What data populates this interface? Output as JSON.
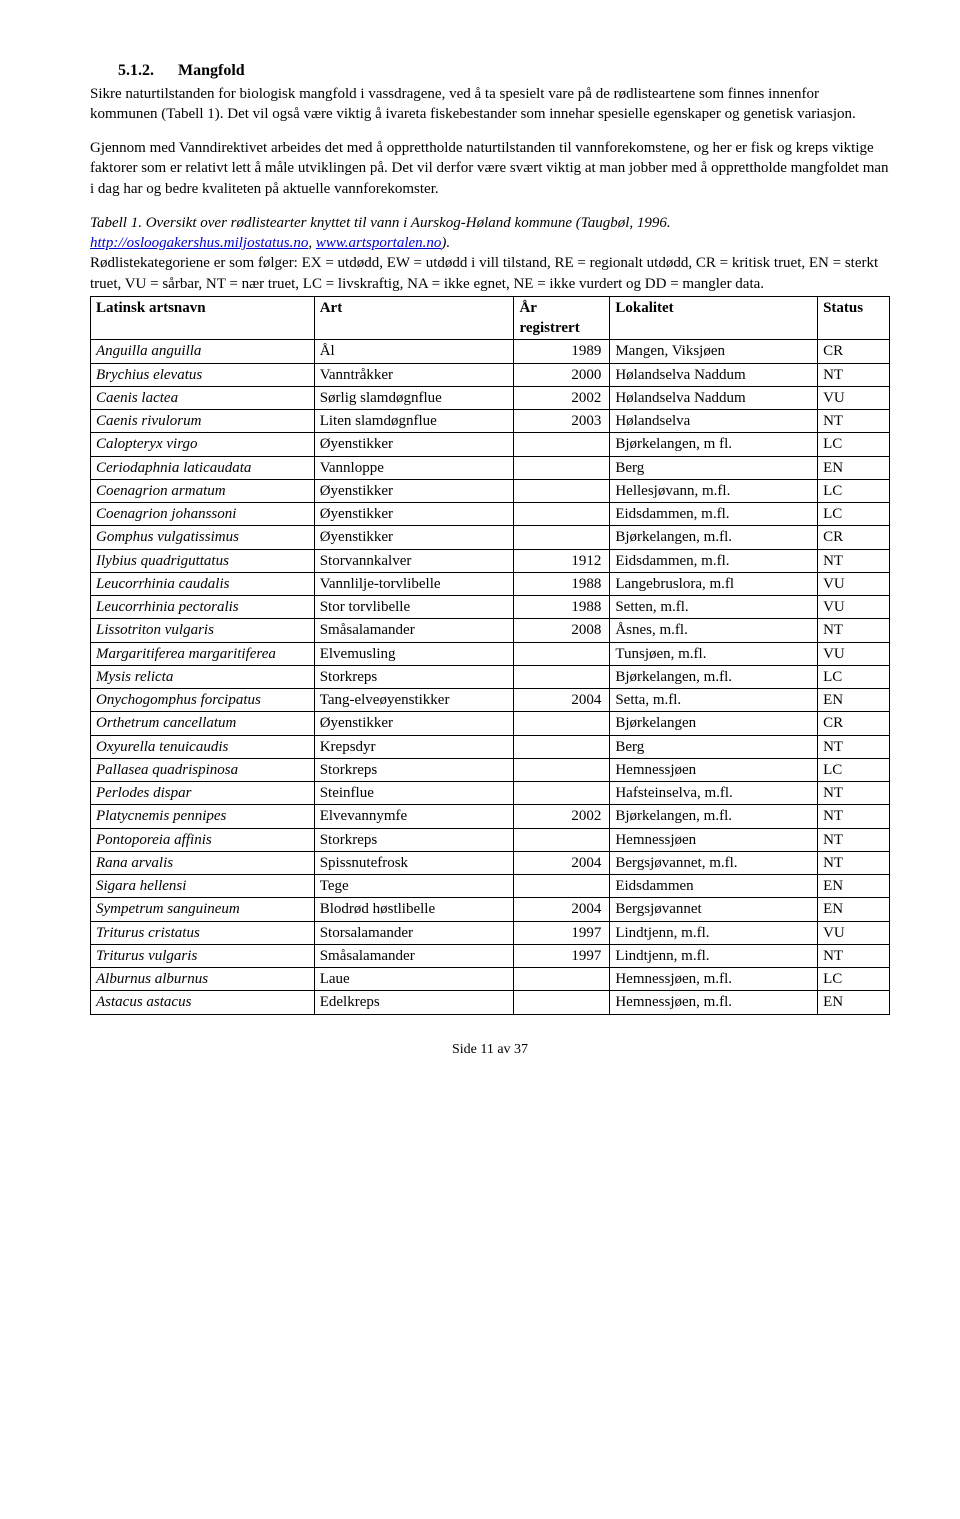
{
  "heading": {
    "number": "5.1.2.",
    "title": "Mangfold"
  },
  "p1": "Sikre naturtilstanden for biologisk mangfold i vassdragene, ved å ta spesielt vare på de rødlisteartene som finnes  innenfor kommunen (Tabell 1). Det vil også være viktig å ivareta fiskebestander som innehar spesielle egenskaper og genetisk variasjon.",
  "p2": "Gjennom med Vanndirektivet arbeides det med å opprettholde naturtilstanden til vannforekomstene, og her er fisk og kreps viktige faktorer som er relativt lett å måle utviklingen på. Det vil derfor være svært viktig at man jobber med å opprettholde mangfoldet man i dag har og bedre kvaliteten på aktuelle vannforekomster.",
  "caption": {
    "lead": "Tabell 1. Oversikt over rødlistearter knyttet til vann i Aurskog-Høland kommune (Taugbøl, 1996. ",
    "link1": "http://osloogakershus.miljostatus.no",
    "sep": ", ",
    "link2": "www.artsportalen.no",
    "tail_ital": ").",
    "after": "Rødlistekategoriene er som følger: EX = utdødd, EW = utdødd i vill tilstand, RE = regionalt utdødd, CR = kritisk truet, EN = sterkt truet, VU = sårbar, NT = nær truet, LC = livskraftig, NA = ikke egnet, NE = ikke vurdert og DD = mangler data."
  },
  "table": {
    "headers": {
      "latin": "Latinsk artsnavn",
      "art": "Art",
      "year_l1": "År",
      "year_l2": "registrert",
      "loc": "Lokalitet",
      "status": "Status"
    },
    "rows": [
      {
        "latin": "Anguilla anguilla",
        "art": "Ål",
        "year": "1989",
        "loc": "Mangen, Viksjøen",
        "status": "CR"
      },
      {
        "latin": "Brychius elevatus",
        "art": "Vanntråkker",
        "year": "2000",
        "loc": "Hølandselva Naddum",
        "status": "NT"
      },
      {
        "latin": "Caenis lactea",
        "art": "Sørlig slamdøgnflue",
        "year": "2002",
        "loc": "Hølandselva Naddum",
        "status": "VU"
      },
      {
        "latin": "Caenis rivulorum",
        "art": "Liten slamdøgnflue",
        "year": "2003",
        "loc": "Hølandselva",
        "status": "NT"
      },
      {
        "latin": "Calopteryx virgo",
        "art": "Øyenstikker",
        "year": "",
        "loc": "Bjørkelangen, m fl.",
        "status": "LC"
      },
      {
        "latin": "Ceriodaphnia laticaudata",
        "art": "Vannloppe",
        "year": "",
        "loc": "Berg",
        "status": "EN"
      },
      {
        "latin": "Coenagrion armatum",
        "art": "Øyenstikker",
        "year": "",
        "loc": "Hellesjøvann, m.fl.",
        "status": "LC"
      },
      {
        "latin": "Coenagrion johanssoni",
        "art": "Øyenstikker",
        "year": "",
        "loc": "Eidsdammen, m.fl.",
        "status": "LC"
      },
      {
        "latin": "Gomphus vulgatissimus",
        "art": "Øyenstikker",
        "year": "",
        "loc": "Bjørkelangen, m.fl.",
        "status": "CR"
      },
      {
        "latin": "Ilybius quadriguttatus",
        "art": "Storvannkalver",
        "year": "1912",
        "loc": "Eidsdammen, m.fl.",
        "status": "NT"
      },
      {
        "latin": "Leucorrhinia caudalis",
        "art": "Vannlilje-torvlibelle",
        "year": "1988",
        "loc": "Langebruslora, m.fl",
        "status": "VU"
      },
      {
        "latin": "Leucorrhinia pectoralis",
        "art": "Stor torvlibelle",
        "year": "1988",
        "loc": "Setten, m.fl.",
        "status": "VU"
      },
      {
        "latin": "Lissotriton vulgaris",
        "art": "Småsalamander",
        "year": "2008",
        "loc": "Åsnes, m.fl.",
        "status": "NT"
      },
      {
        "latin": "Margaritiferea margaritiferea",
        "art": "Elvemusling",
        "year": "",
        "loc": "Tunsjøen, m.fl.",
        "status": "VU"
      },
      {
        "latin": "Mysis relicta",
        "art": "Storkreps",
        "year": "",
        "loc": "Bjørkelangen, m.fl.",
        "status": "LC"
      },
      {
        "latin": "Onychogomphus forcipatus",
        "art": "Tang-elveøyenstikker",
        "year": "2004",
        "loc": "Setta, m.fl.",
        "status": "EN"
      },
      {
        "latin": "Orthetrum cancellatum",
        "art": "Øyenstikker",
        "year": "",
        "loc": "Bjørkelangen",
        "status": "CR"
      },
      {
        "latin": "Oxyurella tenuicaudis",
        "art": "Krepsdyr",
        "year": "",
        "loc": "Berg",
        "status": "NT"
      },
      {
        "latin": "Pallasea quadrispinosa",
        "art": "Storkreps",
        "year": "",
        "loc": "Hemnessjøen",
        "status": "LC"
      },
      {
        "latin": "Perlodes dispar",
        "art": "Steinflue",
        "year": "",
        "loc": "Hafsteinselva, m.fl.",
        "status": "NT"
      },
      {
        "latin": "Platycnemis pennipes",
        "art": "Elvevannymfe",
        "year": "2002",
        "loc": "Bjørkelangen, m.fl.",
        "status": "NT"
      },
      {
        "latin": "Pontoporeia affinis",
        "art": "Storkreps",
        "year": "",
        "loc": "Hemnessjøen",
        "status": "NT"
      },
      {
        "latin": "Rana arvalis",
        "art": "Spissnutefrosk",
        "year": "2004",
        "loc": "Bergsjøvannet, m.fl.",
        "status": "NT"
      },
      {
        "latin": "Sigara hellensi",
        "art": "Tege",
        "year": "",
        "loc": "Eidsdammen",
        "status": "EN"
      },
      {
        "latin": "Sympetrum sanguineum",
        "art": "Blodrød høstlibelle",
        "year": "2004",
        "loc": "Bergsjøvannet",
        "status": "EN"
      },
      {
        "latin": "Triturus cristatus",
        "art": "Storsalamander",
        "year": "1997",
        "loc": "Lindtjenn, m.fl.",
        "status": "VU"
      },
      {
        "latin": "Triturus vulgaris",
        "art": "Småsalamander",
        "year": "1997",
        "loc": "Lindtjenn, m.fl.",
        "status": "NT"
      },
      {
        "latin": "Alburnus alburnus",
        "art": "Laue",
        "year": "",
        "loc": "Hemnessjøen, m.fl.",
        "status": "LC"
      },
      {
        "latin": "Astacus astacus",
        "art": "Edelkreps",
        "year": "",
        "loc": "Hemnessjøen, m.fl.",
        "status": "EN"
      }
    ]
  },
  "footer": "Side 11 av 37"
}
